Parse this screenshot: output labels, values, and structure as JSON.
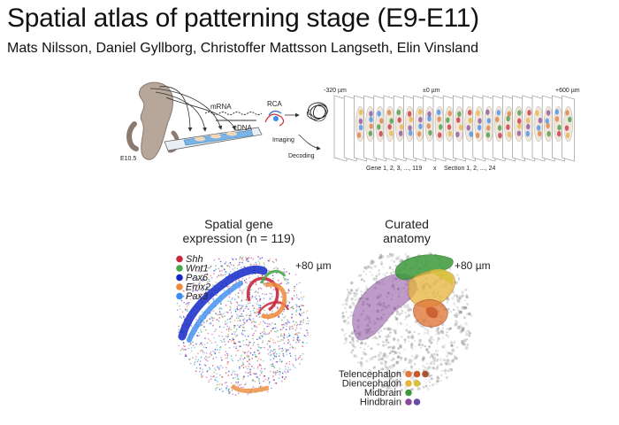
{
  "header": {
    "title": "Spatial atlas of patterning stage (E9-E11)",
    "authors": "Mats Nilsson, Daniel Gyllborg, Christoffer Mattsson Langseth, Elin Vinsland"
  },
  "workflow": {
    "embryo_stage": "E10.5",
    "mrna_label": "mRNA",
    "cdna_label": "cDNA",
    "rca_label": "RCA",
    "imaging_label": "Imaging",
    "decoding_label": "Decoding",
    "depth_start": "-320 µm",
    "depth_mid": "±0 µm",
    "depth_end": "+600 µm",
    "genes_label": "Gene 1, 2, 3, ..., 119",
    "times_label": "x",
    "sections_label": "Section 1, 2, ..., 24"
  },
  "gene_panel": {
    "title_line1": "Spatial gene",
    "title_line2": "expression (n = 119)",
    "depth": "+80 µm",
    "legend": [
      {
        "name": "Shh",
        "color": "#c8283c"
      },
      {
        "name": "Wnt1",
        "color": "#4aa84a"
      },
      {
        "name": "Pax6",
        "color": "#1428c8"
      },
      {
        "name": "Emx2",
        "color": "#ee8a3a"
      },
      {
        "name": "Pax3",
        "color": "#3c8cf0"
      }
    ]
  },
  "anatomy_panel": {
    "title_line1": "Curated",
    "title_line2": "anatomy",
    "depth": "+80 µm",
    "legend": [
      {
        "name": "Telencephalon",
        "colors": [
          "#e07a3c",
          "#c85a2a",
          "#a8542e"
        ]
      },
      {
        "name": "Diencephalon",
        "colors": [
          "#e8b43c",
          "#d4c23a"
        ]
      },
      {
        "name": "Midbrain",
        "colors": [
          "#3c9a3c"
        ]
      },
      {
        "name": "Hindbrain",
        "colors": [
          "#8a4a9c",
          "#6a4aa8"
        ]
      }
    ]
  }
}
